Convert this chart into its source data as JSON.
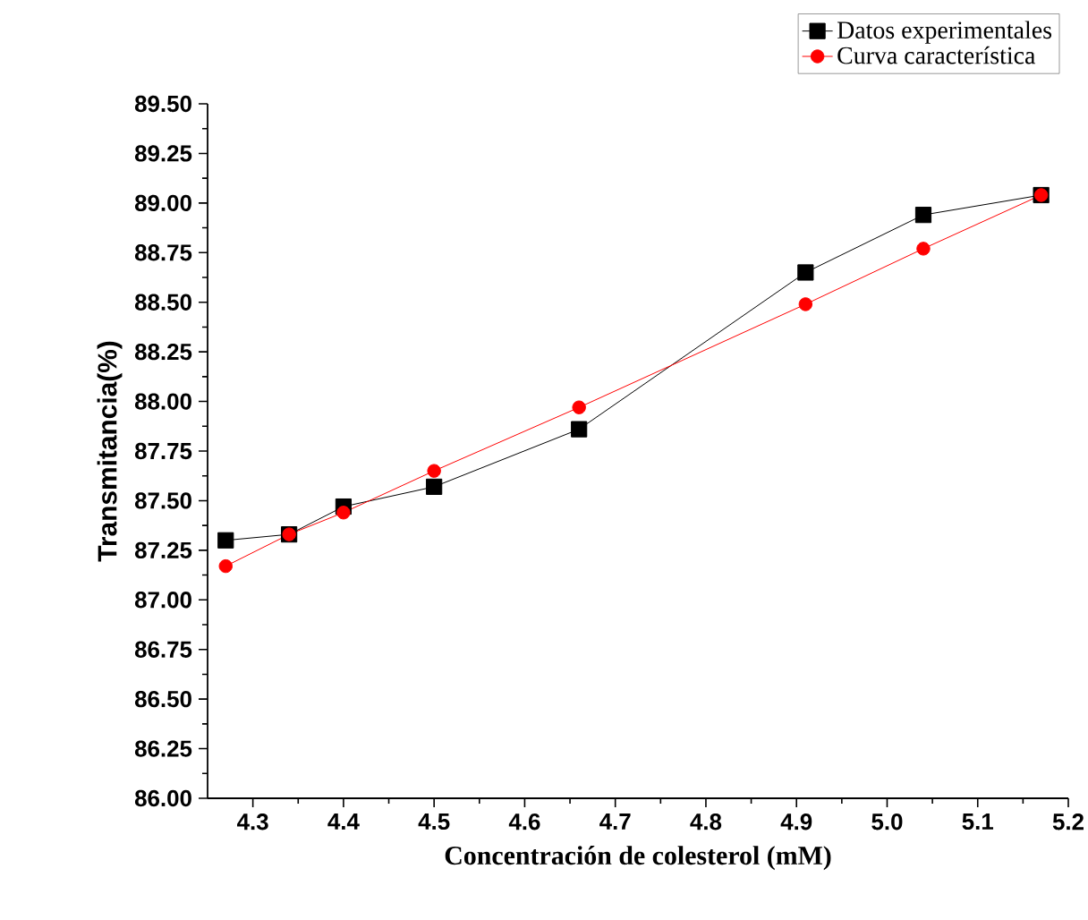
{
  "chart_data": {
    "type": "line",
    "xlabel": "Concentración de colesterol (mM)",
    "ylabel": "Transmitancia(%)",
    "x": [
      4.27,
      4.34,
      4.4,
      4.5,
      4.66,
      4.91,
      5.04,
      5.17
    ],
    "series": [
      {
        "name": "Datos experimentales",
        "color": "#000000",
        "marker": "square",
        "values": [
          87.3,
          87.33,
          87.47,
          87.57,
          87.86,
          88.65,
          88.94,
          89.04
        ]
      },
      {
        "name": "Curva característica",
        "color": "#ff0000",
        "marker": "circle",
        "values": [
          87.17,
          87.33,
          87.44,
          87.65,
          87.97,
          88.49,
          88.77,
          89.04
        ]
      }
    ],
    "xlim": [
      4.25,
      5.2
    ],
    "ylim": [
      86.0,
      89.5
    ],
    "xticks": [
      {
        "value": 4.3,
        "label": "4.3"
      },
      {
        "value": 4.4,
        "label": "4.4"
      },
      {
        "value": 4.5,
        "label": "4.5"
      },
      {
        "value": 4.6,
        "label": "4.6"
      },
      {
        "value": 4.7,
        "label": "4.7"
      },
      {
        "value": 4.8,
        "label": "4.8"
      },
      {
        "value": 4.9,
        "label": "4.9"
      },
      {
        "value": 5.0,
        "label": "5.0"
      },
      {
        "value": 5.1,
        "label": "5.1"
      },
      {
        "value": 5.2,
        "label": "5.2"
      }
    ],
    "yticks": [
      {
        "value": 86.0,
        "label": "86.00"
      },
      {
        "value": 86.25,
        "label": "86.25"
      },
      {
        "value": 86.5,
        "label": "86.50"
      },
      {
        "value": 86.75,
        "label": "86.75"
      },
      {
        "value": 87.0,
        "label": "87.00"
      },
      {
        "value": 87.25,
        "label": "87.25"
      },
      {
        "value": 87.5,
        "label": "87.50"
      },
      {
        "value": 87.75,
        "label": "87.75"
      },
      {
        "value": 88.0,
        "label": "88.00"
      },
      {
        "value": 88.25,
        "label": "88.25"
      },
      {
        "value": 88.5,
        "label": "88.50"
      },
      {
        "value": 88.75,
        "label": "88.75"
      },
      {
        "value": 89.0,
        "label": "89.00"
      },
      {
        "value": 89.25,
        "label": "89.25"
      },
      {
        "value": 89.5,
        "label": "89.50"
      }
    ],
    "legend": "top right",
    "grid": false,
    "line_style": "solid"
  }
}
